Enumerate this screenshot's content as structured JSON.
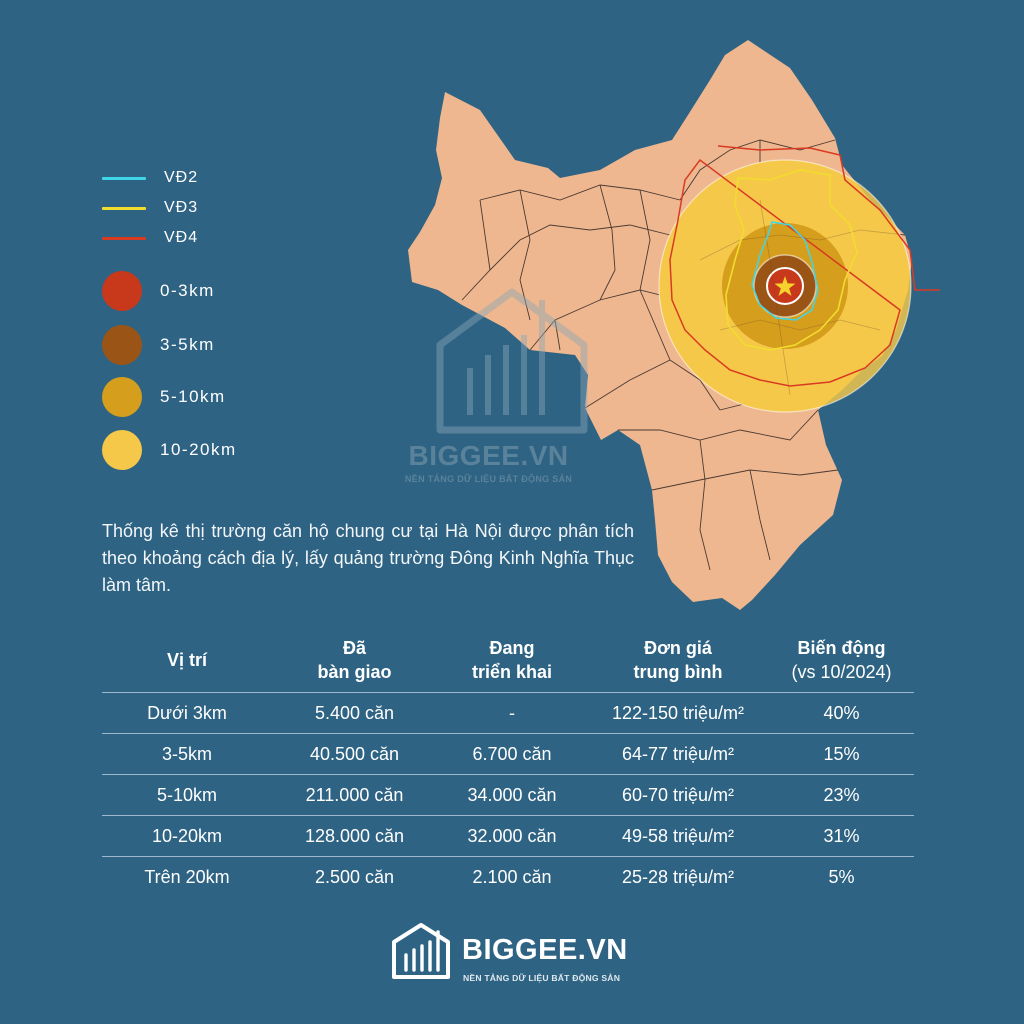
{
  "legend": {
    "lines": [
      {
        "label": "VĐ2",
        "color": "#3fd6ea"
      },
      {
        "label": "VĐ3",
        "color": "#f2dc2e"
      },
      {
        "label": "VĐ4",
        "color": "#d83a22"
      }
    ],
    "zones": [
      {
        "label": "0-3km",
        "color": "#c8391b"
      },
      {
        "label": "3-5km",
        "color": "#9a5516"
      },
      {
        "label": "5-10km",
        "color": "#d59e1c"
      },
      {
        "label": "10-20km",
        "color": "#f5c84a"
      }
    ]
  },
  "map": {
    "land_color": "#efb78f",
    "boundary_color": "#4b3a33",
    "center_marker": "star-icon",
    "center_marker_color": "#f6d22c"
  },
  "watermark": {
    "name": "BIGGEE.VN",
    "tagline": "NỀN TẢNG DỮ LIỆU BẤT ĐỘNG SẢN"
  },
  "description": "Thống kê thị trường căn hộ chung cư tại Hà Nội được phân tích theo khoảng cách địa lý, lấy quảng trường Đông Kinh Nghĩa Thục làm tâm.",
  "table": {
    "headers": [
      {
        "main": "Vị trí",
        "sub": ""
      },
      {
        "main": "Đã\nbàn giao",
        "sub": ""
      },
      {
        "main": "Đang\ntriển khai",
        "sub": ""
      },
      {
        "main": "Đơn giá\ntrung bình",
        "sub": ""
      },
      {
        "main": "Biến động",
        "sub": "(vs 10/2024)"
      }
    ],
    "rows": [
      [
        "Dưới 3km",
        "5.400 căn",
        "-",
        "122-150 triệu/m²",
        "40%"
      ],
      [
        "3-5km",
        "40.500 căn",
        "6.700 căn",
        "64-77 triệu/m²",
        "15%"
      ],
      [
        "5-10km",
        "211.000 căn",
        "34.000 căn",
        "60-70 triệu/m²",
        "23%"
      ],
      [
        "10-20km",
        "128.000 căn",
        "32.000 căn",
        "49-58 triệu/m²",
        "31%"
      ],
      [
        "Trên 20km",
        "2.500 căn",
        "2.100 căn",
        "25-28 triệu/m²",
        "5%"
      ]
    ]
  },
  "brand": {
    "name": "BIGGEE.VN",
    "tagline": "NỀN TẢNG DỮ LIỆU BẤT ĐỘNG SẢN",
    "logo_icon": "building-bars-icon"
  }
}
